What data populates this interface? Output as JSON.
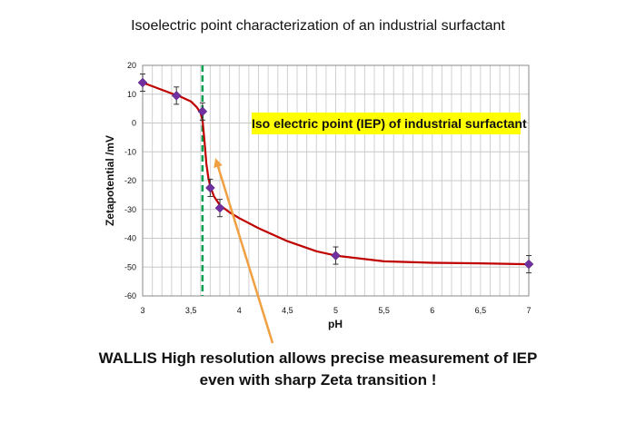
{
  "chart_data": {
    "type": "scatter",
    "title": "Isoelectric point characterization of an industrial surfactant",
    "xlabel": "pH",
    "ylabel": "Zetapotential /mV",
    "xlim": [
      3,
      7
    ],
    "ylim": [
      -60,
      20
    ],
    "x_ticks": [
      "3",
      "3,5",
      "4",
      "4,5",
      "5",
      "5,5",
      "6",
      "6,5",
      "7"
    ],
    "x_tick_values": [
      3,
      3.5,
      4,
      4.5,
      5,
      5.5,
      6,
      6.5,
      7
    ],
    "y_ticks": [
      "20",
      "10",
      "0",
      "-10",
      "-20",
      "-30",
      "-40",
      "-50",
      "-60"
    ],
    "y_tick_values": [
      20,
      10,
      0,
      -10,
      -20,
      -30,
      -40,
      -50,
      -60
    ],
    "grid": true,
    "series": [
      {
        "x": [
          3.0,
          3.35,
          3.62,
          3.7,
          3.8,
          5.0,
          7.0
        ],
        "y": [
          14,
          9.5,
          4,
          -22.5,
          -29.5,
          -46,
          -49
        ],
        "error": [
          3,
          3,
          3,
          3,
          3,
          3,
          3
        ]
      }
    ],
    "fit_curve": {
      "x": [
        3.0,
        3.2,
        3.4,
        3.5,
        3.56,
        3.6,
        3.62,
        3.64,
        3.66,
        3.68,
        3.7,
        3.74,
        3.8,
        3.9,
        4.0,
        4.2,
        4.5,
        4.8,
        5.0,
        5.5,
        6.0,
        6.5,
        7.0
      ],
      "y": [
        14,
        11.5,
        9,
        7.5,
        5.5,
        3.5,
        1,
        -6,
        -14,
        -19,
        -22,
        -25.5,
        -28.5,
        -31,
        -33,
        -36.5,
        -41,
        -44.5,
        -46,
        -48,
        -48.5,
        -48.7,
        -49
      ]
    },
    "iep_line_x": 3.62,
    "annotations": [
      "Iso electric point  (IEP) of industrial  surfactant"
    ],
    "colors": {
      "curve": "#c00000",
      "markers": "#7030a0",
      "iep_line": "#00a050",
      "arrow": "#f0a040",
      "callout_bg": "#ffff00"
    }
  },
  "caption": {
    "line1": "WALLIS High resolution allows precise measurement of IEP",
    "line2": "even with sharp Zeta transition !"
  }
}
